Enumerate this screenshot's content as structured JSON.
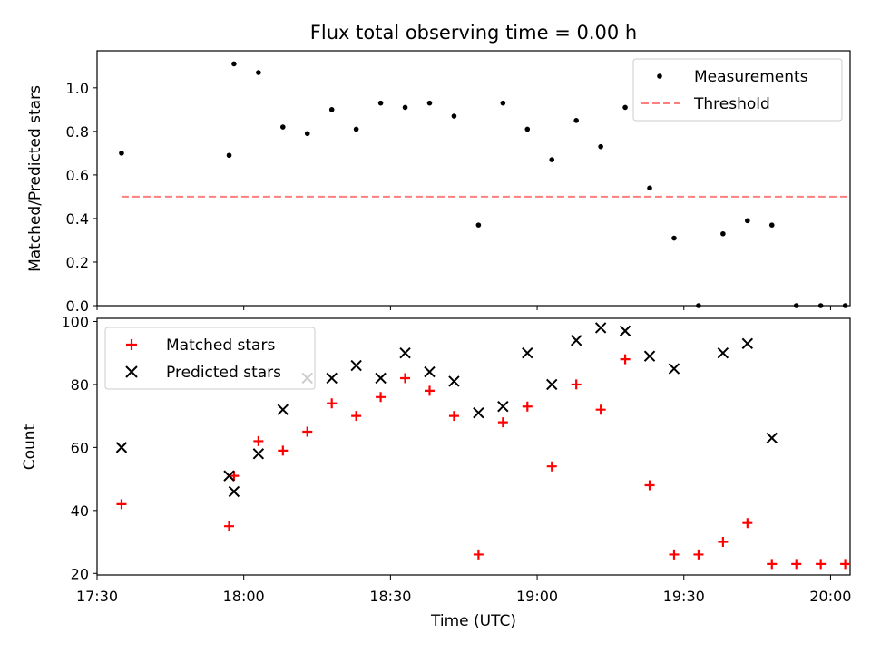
{
  "chart_data": [
    {
      "type": "scatter",
      "title": "Flux total observing time = 0.00 h",
      "xlabel": "",
      "ylabel": "Matched/Predicted stars",
      "ylim": [
        0,
        1.17
      ],
      "yticks": [
        0.0,
        0.2,
        0.4,
        0.6,
        0.8,
        1.0
      ],
      "ytick_labels": [
        "0.0",
        "0.2",
        "0.4",
        "0.6",
        "0.8",
        "1.0"
      ],
      "legend": {
        "placement": "top-right",
        "entries": [
          "Measurements",
          "Threshold"
        ]
      },
      "series": [
        {
          "name": "Measurements",
          "color": "#000000",
          "marker": "dot",
          "x": [
            "17:35",
            "17:57",
            "17:58",
            "18:03",
            "18:08",
            "18:13",
            "18:18",
            "18:23",
            "18:28",
            "18:33",
            "18:38",
            "18:43",
            "18:48",
            "18:53",
            "18:58",
            "19:03",
            "19:08",
            "19:13",
            "19:18",
            "19:23",
            "19:28",
            "19:33",
            "19:38",
            "19:43",
            "19:48",
            "19:53",
            "19:58",
            "20:03"
          ],
          "y": [
            0.7,
            0.69,
            1.11,
            1.07,
            0.82,
            0.79,
            0.9,
            0.81,
            0.93,
            0.91,
            0.93,
            0.87,
            0.37,
            0.93,
            0.81,
            0.67,
            0.85,
            0.73,
            0.91,
            0.54,
            0.31,
            0.0,
            0.33,
            0.39,
            0.37,
            0.0,
            0.0,
            0.0
          ]
        },
        {
          "name": "Threshold",
          "color": "#ff7f7f",
          "style": "dashed",
          "x": [
            "17:35",
            "20:04"
          ],
          "y": [
            0.5,
            0.5
          ]
        }
      ]
    },
    {
      "type": "scatter",
      "title": "",
      "xlabel": "Time (UTC)",
      "ylabel": "Count",
      "ylim": [
        19.5,
        101
      ],
      "yticks": [
        20,
        40,
        60,
        80,
        100
      ],
      "ytick_labels": [
        "20",
        "40",
        "60",
        "80",
        "100"
      ],
      "xlim": [
        "17:30",
        "20:04"
      ],
      "xticks": [
        "17:30",
        "18:00",
        "18:30",
        "19:00",
        "19:30",
        "20:00"
      ],
      "legend": {
        "placement": "top-left",
        "entries": [
          "Matched stars",
          "Predicted stars"
        ]
      },
      "series": [
        {
          "name": "Matched stars",
          "color": "#ff0000",
          "marker": "plus",
          "x": [
            "17:35",
            "17:57",
            "17:58",
            "18:03",
            "18:08",
            "18:13",
            "18:18",
            "18:23",
            "18:28",
            "18:33",
            "18:38",
            "18:43",
            "18:48",
            "18:53",
            "18:58",
            "19:03",
            "19:08",
            "19:13",
            "19:18",
            "19:23",
            "19:28",
            "19:33",
            "19:38",
            "19:43",
            "19:48",
            "19:53",
            "19:58",
            "20:03"
          ],
          "y": [
            42,
            35,
            51,
            62,
            59,
            65,
            74,
            70,
            76,
            82,
            78,
            70,
            26,
            68,
            73,
            54,
            80,
            72,
            88,
            48,
            26,
            26,
            30,
            36,
            23,
            23,
            23,
            23
          ]
        },
        {
          "name": "Predicted stars",
          "color": "#000000",
          "marker": "x",
          "x": [
            "17:35",
            "17:57",
            "17:58",
            "18:03",
            "18:08",
            "18:13",
            "18:18",
            "18:23",
            "18:28",
            "18:33",
            "18:38",
            "18:43",
            "18:48",
            "18:53",
            "18:58",
            "19:03",
            "19:08",
            "19:13",
            "19:18",
            "19:23",
            "19:28",
            "19:38",
            "19:43",
            "19:48"
          ],
          "y": [
            60,
            51,
            46,
            58,
            72,
            82,
            82,
            86,
            82,
            90,
            84,
            81,
            71,
            73,
            90,
            80,
            94,
            98,
            97,
            89,
            85,
            90,
            93,
            63
          ]
        }
      ]
    }
  ]
}
